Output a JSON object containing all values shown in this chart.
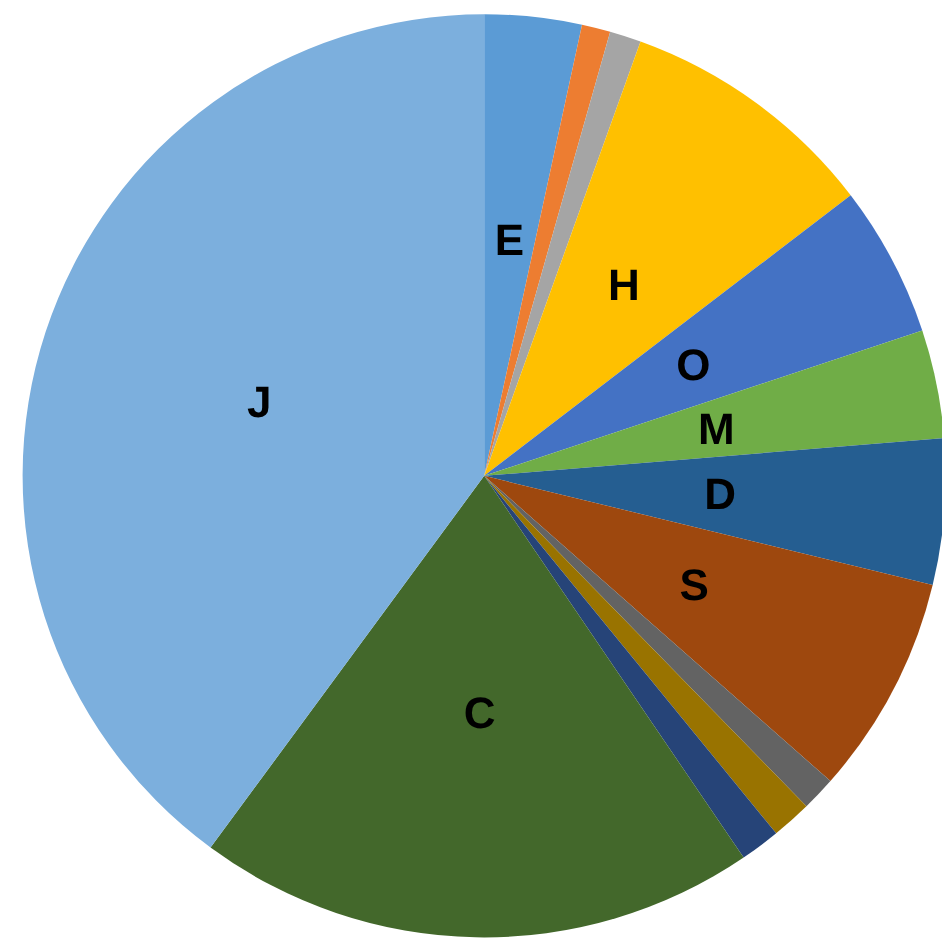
{
  "chart_data": {
    "type": "pie",
    "categories": [
      "E",
      null,
      null,
      "H",
      "O",
      "M",
      "D",
      "S",
      null,
      null,
      null,
      "C",
      "J"
    ],
    "values": [
      3.4,
      1,
      1.1,
      9.1,
      5.3,
      3.8,
      5.1,
      7.7,
      1.2,
      1.4,
      1.4,
      19.6,
      39.9
    ],
    "colors": [
      "#5b9bd5",
      "#ed7d31",
      "#a5a5a5",
      "#ffc000",
      "#4472c4",
      "#70ad47",
      "#255e91",
      "#9e480e",
      "#636363",
      "#997300",
      "#264478",
      "#43682b",
      "#7cafdd"
    ],
    "legend": false
  }
}
